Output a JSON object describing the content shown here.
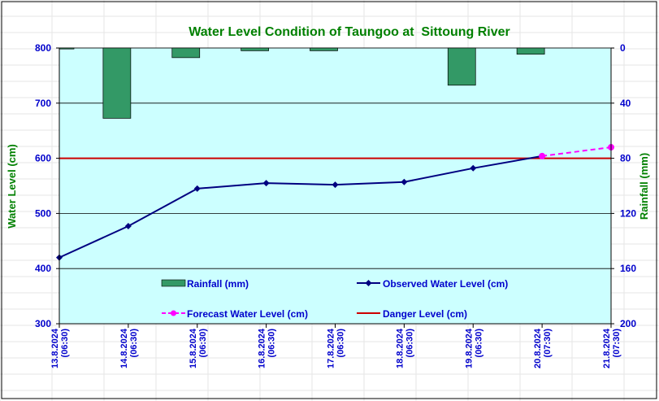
{
  "chart_data": {
    "type": "bar+line",
    "title": "Water Level Condition of Taungoo at  Sittoung River",
    "ylabel_left": "Water Level (cm)",
    "ylabel_right": "Rainfall (mm)",
    "ylim_left": [
      300,
      800
    ],
    "ylim_right": [
      200,
      0
    ],
    "right_axis_inverted": true,
    "yticks_left": [
      300,
      400,
      500,
      600,
      700,
      800
    ],
    "yticks_right": [
      0,
      40,
      80,
      120,
      160,
      200
    ],
    "categories": [
      [
        "13.8.2024",
        "(06:30)"
      ],
      [
        "14.8.2024",
        "(06:30)"
      ],
      [
        "15.8.2024",
        "(06:30)"
      ],
      [
        "16.8.2024",
        "(06:30)"
      ],
      [
        "17.8.2024",
        "(06:30)"
      ],
      [
        "18.8.2024",
        "(06:30)"
      ],
      [
        "19.8.2024",
        "(06:30)"
      ],
      [
        "20.8.2024",
        "(07:30)"
      ],
      [
        "21.8.2024",
        "(07:30)"
      ]
    ],
    "series": [
      {
        "name": "Rainfall (mm)",
        "kind": "bar",
        "axis": "right",
        "values": [
          0.3,
          51,
          7,
          2,
          2,
          null,
          27,
          4.5,
          null
        ]
      },
      {
        "name": "Observed Water Level (cm)",
        "kind": "line",
        "axis": "left",
        "values": [
          420,
          477,
          545,
          555,
          552,
          557,
          582,
          604,
          null
        ]
      },
      {
        "name": "Forecast Water Level (cm)",
        "kind": "line-dashed",
        "axis": "left",
        "values": [
          null,
          null,
          null,
          null,
          null,
          null,
          null,
          604,
          620
        ]
      },
      {
        "name": "Danger Level (cm)",
        "kind": "hline",
        "axis": "left",
        "value": 600
      }
    ],
    "grid": true,
    "legend_position": "inside-bottom",
    "colors": {
      "plot_background": "#ccffff",
      "rainfall": "#339966",
      "observed": "#000080",
      "forecast": "#ff00ff",
      "danger": "#cc0000",
      "title": "#008000",
      "axis_labels": "#0000cc",
      "axis_title": "#008000"
    }
  }
}
